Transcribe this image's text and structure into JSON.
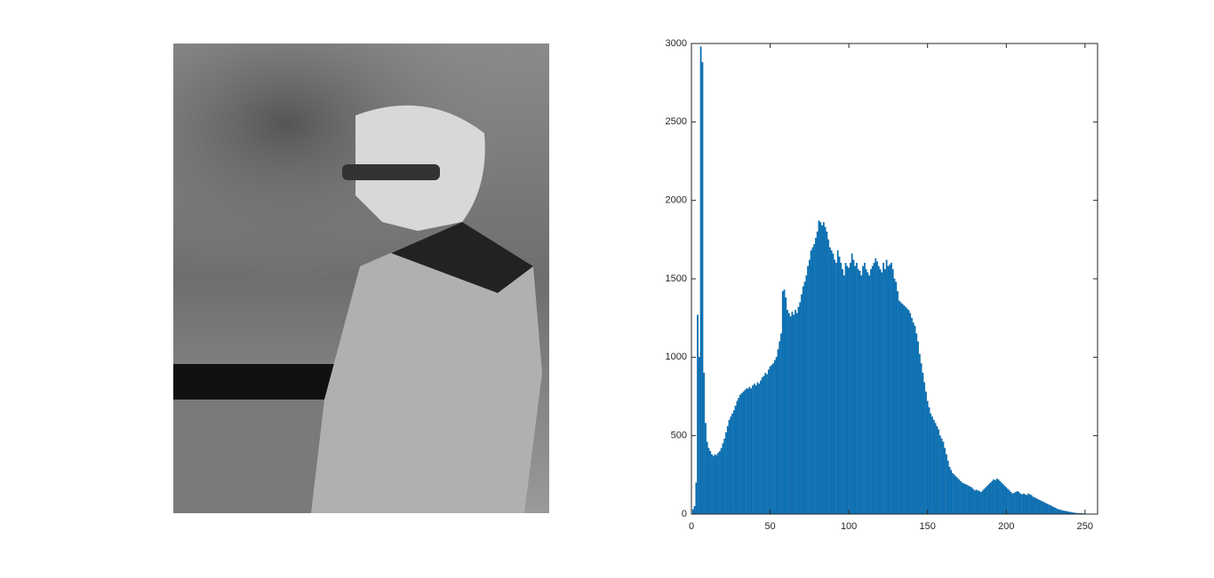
{
  "chart_data": {
    "type": "bar",
    "x": [
      0,
      1,
      2,
      3,
      4,
      5,
      6,
      7,
      8,
      9,
      10,
      11,
      12,
      13,
      14,
      15,
      16,
      17,
      18,
      19,
      20,
      21,
      22,
      23,
      24,
      25,
      26,
      27,
      28,
      29,
      30,
      31,
      32,
      33,
      34,
      35,
      36,
      37,
      38,
      39,
      40,
      41,
      42,
      43,
      44,
      45,
      46,
      47,
      48,
      49,
      50,
      51,
      52,
      53,
      54,
      55,
      56,
      57,
      58,
      59,
      60,
      61,
      62,
      63,
      64,
      65,
      66,
      67,
      68,
      69,
      70,
      71,
      72,
      73,
      74,
      75,
      76,
      77,
      78,
      79,
      80,
      81,
      82,
      83,
      84,
      85,
      86,
      87,
      88,
      89,
      90,
      91,
      92,
      93,
      94,
      95,
      96,
      97,
      98,
      99,
      100,
      101,
      102,
      103,
      104,
      105,
      106,
      107,
      108,
      109,
      110,
      111,
      112,
      113,
      114,
      115,
      116,
      117,
      118,
      119,
      120,
      121,
      122,
      123,
      124,
      125,
      126,
      127,
      128,
      129,
      130,
      131,
      132,
      133,
      134,
      135,
      136,
      137,
      138,
      139,
      140,
      141,
      142,
      143,
      144,
      145,
      146,
      147,
      148,
      149,
      150,
      151,
      152,
      153,
      154,
      155,
      156,
      157,
      158,
      159,
      160,
      161,
      162,
      163,
      164,
      165,
      166,
      167,
      168,
      169,
      170,
      171,
      172,
      173,
      174,
      175,
      176,
      177,
      178,
      179,
      180,
      181,
      182,
      183,
      184,
      185,
      186,
      187,
      188,
      189,
      190,
      191,
      192,
      193,
      194,
      195,
      196,
      197,
      198,
      199,
      200,
      201,
      202,
      203,
      204,
      205,
      206,
      207,
      208,
      209,
      210,
      211,
      212,
      213,
      214,
      215,
      216,
      217,
      218,
      219,
      220,
      221,
      222,
      223,
      224,
      225,
      226,
      227,
      228,
      229,
      230,
      231,
      232,
      233,
      234,
      235,
      236,
      237,
      238,
      239,
      240,
      241,
      242,
      243,
      244,
      245,
      246,
      247,
      248,
      249,
      250,
      251,
      252,
      253,
      254,
      255
    ],
    "values": [
      0,
      30,
      50,
      200,
      1270,
      1000,
      2980,
      2880,
      900,
      580,
      460,
      420,
      400,
      380,
      370,
      380,
      375,
      390,
      400,
      420,
      450,
      480,
      520,
      560,
      600,
      620,
      640,
      660,
      690,
      720,
      740,
      760,
      770,
      780,
      790,
      800,
      800,
      810,
      800,
      820,
      830,
      820,
      840,
      830,
      850,
      870,
      880,
      900,
      890,
      920,
      940,
      950,
      960,
      980,
      1000,
      1050,
      1100,
      1150,
      1420,
      1430,
      1380,
      1300,
      1280,
      1260,
      1290,
      1270,
      1300,
      1280,
      1320,
      1350,
      1400,
      1450,
      1480,
      1520,
      1580,
      1620,
      1680,
      1700,
      1720,
      1760,
      1800,
      1870,
      1860,
      1840,
      1860,
      1830,
      1800,
      1750,
      1700,
      1680,
      1660,
      1620,
      1600,
      1680,
      1640,
      1600,
      1560,
      1520,
      1600,
      1580,
      1570,
      1600,
      1660,
      1620,
      1580,
      1600,
      1560,
      1550,
      1520,
      1580,
      1600,
      1560,
      1540,
      1520,
      1560,
      1580,
      1600,
      1630,
      1610,
      1580,
      1560,
      1540,
      1600,
      1560,
      1620,
      1580,
      1590,
      1600,
      1560,
      1500,
      1480,
      1420,
      1360,
      1350,
      1340,
      1330,
      1320,
      1310,
      1300,
      1280,
      1250,
      1220,
      1200,
      1150,
      1100,
      1020,
      960,
      900,
      840,
      780,
      720,
      680,
      640,
      620,
      600,
      580,
      560,
      540,
      500,
      480,
      460,
      420,
      380,
      340,
      300,
      280,
      260,
      250,
      240,
      230,
      220,
      210,
      200,
      195,
      190,
      185,
      180,
      175,
      170,
      160,
      150,
      155,
      150,
      145,
      140,
      150,
      160,
      170,
      180,
      190,
      200,
      210,
      220,
      215,
      225,
      220,
      210,
      200,
      190,
      180,
      170,
      160,
      150,
      140,
      130,
      135,
      140,
      145,
      140,
      130,
      125,
      130,
      125,
      120,
      130,
      125,
      120,
      110,
      105,
      100,
      95,
      90,
      85,
      80,
      75,
      70,
      65,
      60,
      55,
      50,
      45,
      40,
      35,
      30,
      28,
      25,
      22,
      20,
      18,
      16,
      14,
      12,
      10,
      8,
      7,
      6,
      5,
      5,
      4,
      3,
      3,
      2,
      2,
      2,
      1,
      1
    ],
    "color": "#0072bd",
    "xlim": [
      0,
      258
    ],
    "xticks": [
      0,
      50,
      100,
      150,
      200,
      250
    ],
    "ylim": [
      0,
      3000
    ],
    "yticks": [
      0,
      500,
      1000,
      1500,
      2000,
      2500,
      3000
    ]
  }
}
